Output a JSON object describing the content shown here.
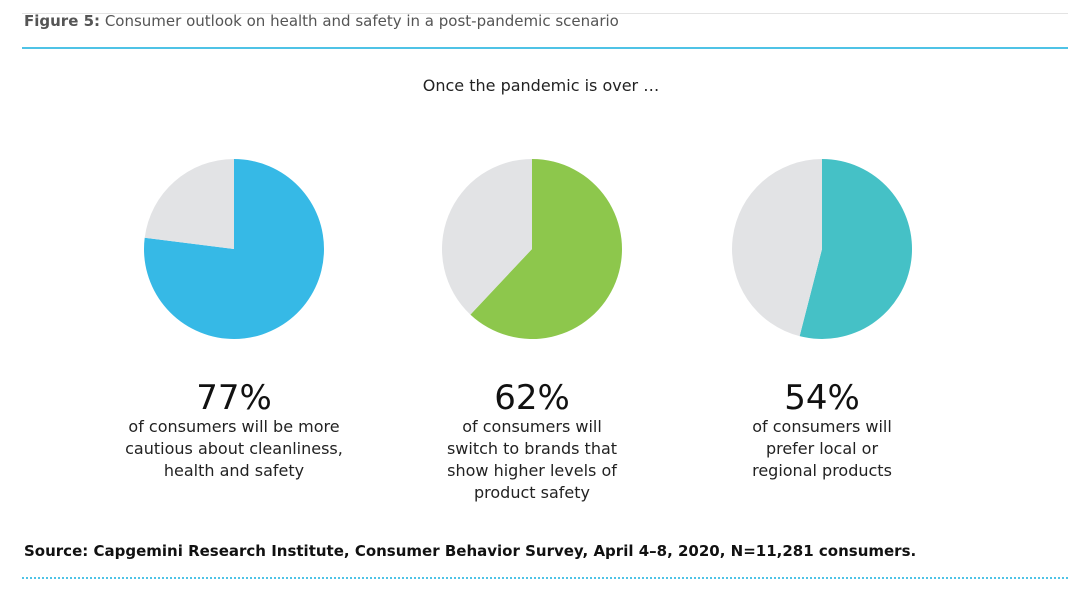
{
  "figure": {
    "label": "Figure 5:",
    "title": "Consumer outlook on health and safety in a post-pandemic scenario",
    "subtitle": "Once the pandemic is over …"
  },
  "stats": [
    {
      "percent_text": "77%",
      "description": "of consumers will be more cautious about cleanliness, health and safety"
    },
    {
      "percent_text": "62%",
      "description": "of consumers will switch to brands that show higher levels of product safety"
    },
    {
      "percent_text": "54%",
      "description": "of consumers will prefer local or regional products"
    }
  ],
  "source": "Source: Capgemini Research Institute, Consumer Behavior Survey, April 4–8, 2020, N=11,281 consumers.",
  "colors": {
    "accent_rule": "#4fc3e6",
    "remainder": "#e2e3e5"
  },
  "chart_data": [
    {
      "type": "pie",
      "values": [
        77,
        23
      ],
      "colors": [
        "#36b9e6",
        "#e2e3e5"
      ]
    },
    {
      "type": "pie",
      "values": [
        62,
        38
      ],
      "colors": [
        "#8dc74c",
        "#e2e3e5"
      ]
    },
    {
      "type": "pie",
      "values": [
        54,
        46
      ],
      "colors": [
        "#45c1c6",
        "#e2e3e5"
      ]
    }
  ]
}
